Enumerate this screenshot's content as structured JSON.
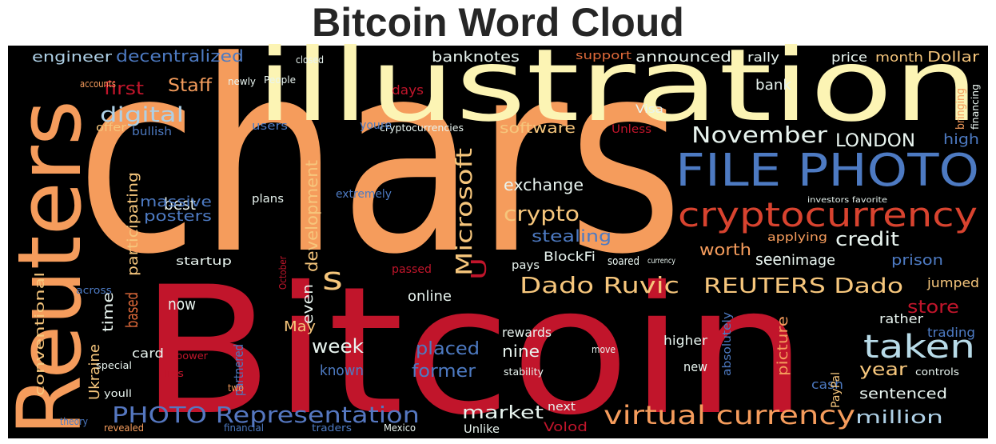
{
  "chart_data": {
    "type": "wordcloud",
    "title": "Bitcoin Word Cloud",
    "words": [
      {
        "text": "chars",
        "color": "#f59c5c"
      },
      {
        "text": "Bitcoin",
        "color": "#c1152b"
      },
      {
        "text": "illustration",
        "color": "#fcf4b4"
      },
      {
        "text": "Reuters",
        "color": "#f59c5c"
      },
      {
        "text": "FILE PHOTO",
        "color": "#4d7ac2"
      },
      {
        "text": "cryptocurrency",
        "color": "#d8432f"
      },
      {
        "text": "Dado Ruvic",
        "color": "#f6c67c"
      },
      {
        "text": "REUTERS Dado",
        "color": "#f6c67c"
      },
      {
        "text": "virtual currency",
        "color": "#f59c5c"
      },
      {
        "text": "PHOTO Representation",
        "color": "#5577c0"
      },
      {
        "text": "taken",
        "color": "#b8dbe8"
      },
      {
        "text": "November",
        "color": "#e8f4ef"
      },
      {
        "text": "LONDON",
        "color": "#e8f4ef"
      },
      {
        "text": "Microsoft",
        "color": "#f6c67c"
      },
      {
        "text": "digital",
        "color": "#aed0e6"
      },
      {
        "text": "Staff",
        "color": "#f59c5c"
      },
      {
        "text": "first",
        "color": "#c1152b"
      },
      {
        "text": "decentralized",
        "color": "#4d7ac2"
      },
      {
        "text": "engineer",
        "color": "#aed0e6"
      },
      {
        "text": "banknotes",
        "color": "#e8f4ef"
      },
      {
        "text": "announced",
        "color": "#e8f4ef"
      },
      {
        "text": "Dollar",
        "color": "#f6c67c"
      },
      {
        "text": "month",
        "color": "#f6c67c"
      },
      {
        "text": "price",
        "color": "#e8f4ef"
      },
      {
        "text": "rally",
        "color": "#e8f4ef"
      },
      {
        "text": "support",
        "color": "#e06a3a"
      },
      {
        "text": "crypto",
        "color": "#f6c67c"
      },
      {
        "text": "exchange",
        "color": "#e8f4ef"
      },
      {
        "text": "software",
        "color": "#f6c67c"
      },
      {
        "text": "stealing",
        "color": "#4d7ac2"
      },
      {
        "text": "best",
        "color": "#e8f4ef"
      },
      {
        "text": "massive",
        "color": "#4d7ac2"
      },
      {
        "text": "posters",
        "color": "#4d7ac2"
      },
      {
        "text": "participating",
        "color": "#f6c67c"
      },
      {
        "text": "development",
        "color": "#f6c67c"
      },
      {
        "text": "credit",
        "color": "#e8f4ef"
      },
      {
        "text": "worth",
        "color": "#f59c5c"
      },
      {
        "text": "prison",
        "color": "#4d7ac2"
      },
      {
        "text": "seen",
        "color": "#e8f4ef"
      },
      {
        "text": "image",
        "color": "#e8f4ef"
      },
      {
        "text": "applying",
        "color": "#f59c5c"
      },
      {
        "text": "high",
        "color": "#4d7ac2"
      },
      {
        "text": "bank",
        "color": "#e8f4ef"
      },
      {
        "text": "users",
        "color": "#4d7ac2"
      },
      {
        "text": "bullish",
        "color": "#4d7ac2"
      },
      {
        "text": "offer",
        "color": "#f6c67c"
      },
      {
        "text": "days",
        "color": "#c1152b"
      },
      {
        "text": "Visa",
        "color": "#e8f4ef"
      },
      {
        "text": "Unless",
        "color": "#c1152b"
      },
      {
        "text": "now",
        "color": "#e8f4ef"
      },
      {
        "text": "time",
        "color": "#e8f4ef"
      },
      {
        "text": "based",
        "color": "#e06a3a"
      },
      {
        "text": "Ukraine",
        "color": "#f6c67c"
      },
      {
        "text": "conventional",
        "color": "#f6c67c"
      },
      {
        "text": "card",
        "color": "#e8f4ef"
      },
      {
        "text": "week",
        "color": "#e8f4ef"
      },
      {
        "text": "May",
        "color": "#f6c67c"
      },
      {
        "text": "even",
        "color": "#e8f4ef"
      },
      {
        "text": "online",
        "color": "#e8f4ef"
      },
      {
        "text": "placed",
        "color": "#4d7ac2"
      },
      {
        "text": "former",
        "color": "#4d7ac2"
      },
      {
        "text": "nine",
        "color": "#e8f4ef"
      },
      {
        "text": "rewards",
        "color": "#e8f4ef"
      },
      {
        "text": "market",
        "color": "#e8f4ef"
      },
      {
        "text": "Unlike",
        "color": "#e8f4ef"
      },
      {
        "text": "next",
        "color": "#e8f4ef"
      },
      {
        "text": "Volod",
        "color": "#c1152b"
      },
      {
        "text": "new",
        "color": "#e8f4ef"
      },
      {
        "text": "higher",
        "color": "#e8f4ef"
      },
      {
        "text": "year",
        "color": "#f6c67c"
      },
      {
        "text": "sentenced",
        "color": "#e8f4ef"
      },
      {
        "text": "million",
        "color": "#aed0e6"
      },
      {
        "text": "store",
        "color": "#c1152b"
      },
      {
        "text": "jumped",
        "color": "#f6c67c"
      },
      {
        "text": "rather",
        "color": "#e8f4ef"
      },
      {
        "text": "trading",
        "color": "#4d7ac2"
      },
      {
        "text": "cash",
        "color": "#4d7ac2"
      },
      {
        "text": "picture",
        "color": "#f59c5c"
      },
      {
        "text": "absolutely",
        "color": "#4d7ac2"
      },
      {
        "text": "PayPal",
        "color": "#f6c67c"
      },
      {
        "text": "known",
        "color": "#4d7ac2"
      },
      {
        "text": "partnered",
        "color": "#4d7ac2"
      },
      {
        "text": "BlockFi",
        "color": "#e8f4ef"
      },
      {
        "text": "pays",
        "color": "#e8f4ef"
      },
      {
        "text": "passed",
        "color": "#c1152b"
      },
      {
        "text": "startup",
        "color": "#e8f4ef"
      },
      {
        "text": "s",
        "color": "#f6c67c"
      },
      {
        "text": "U",
        "color": "#c1152b"
      },
      {
        "text": "extremely",
        "color": "#4d7ac2"
      },
      {
        "text": "plans",
        "color": "#e8f4ef"
      },
      {
        "text": "People",
        "color": "#e8f4ef"
      },
      {
        "text": "closed",
        "color": "#e8f4ef"
      },
      {
        "text": "cryptocurrencies",
        "color": "#e8f4ef"
      },
      {
        "text": "youre",
        "color": "#4d7ac2"
      },
      {
        "text": "newly",
        "color": "#e8f4ef"
      },
      {
        "text": "accounts",
        "color": "#f59c5c"
      },
      {
        "text": "special",
        "color": "#e8f4ef"
      },
      {
        "text": "youll",
        "color": "#e8f4ef"
      },
      {
        "text": "theory",
        "color": "#4d7ac2"
      },
      {
        "text": "revealed",
        "color": "#f59c5c"
      },
      {
        "text": "financial",
        "color": "#4d7ac2"
      },
      {
        "text": "traders",
        "color": "#4d7ac2"
      },
      {
        "text": "Mexico",
        "color": "#e8f4ef"
      },
      {
        "text": "across",
        "color": "#4d7ac2"
      },
      {
        "text": "October",
        "color": "#c1152b"
      },
      {
        "text": "financing",
        "color": "#e8f4ef"
      },
      {
        "text": "bringing",
        "color": "#f59c5c"
      },
      {
        "text": "controls",
        "color": "#e8f4ef"
      },
      {
        "text": "stability",
        "color": "#e8f4ef"
      },
      {
        "text": "move",
        "color": "#e8f4ef"
      },
      {
        "text": "lies",
        "color": "#c1152b"
      },
      {
        "text": "two",
        "color": "#f59c5c"
      },
      {
        "text": "power",
        "color": "#c1152b"
      },
      {
        "text": "investors favorite",
        "color": "#e8f4ef"
      },
      {
        "text": "soared",
        "color": "#e8f4ef"
      },
      {
        "text": "currency",
        "color": "#e8f4ef"
      }
    ]
  }
}
